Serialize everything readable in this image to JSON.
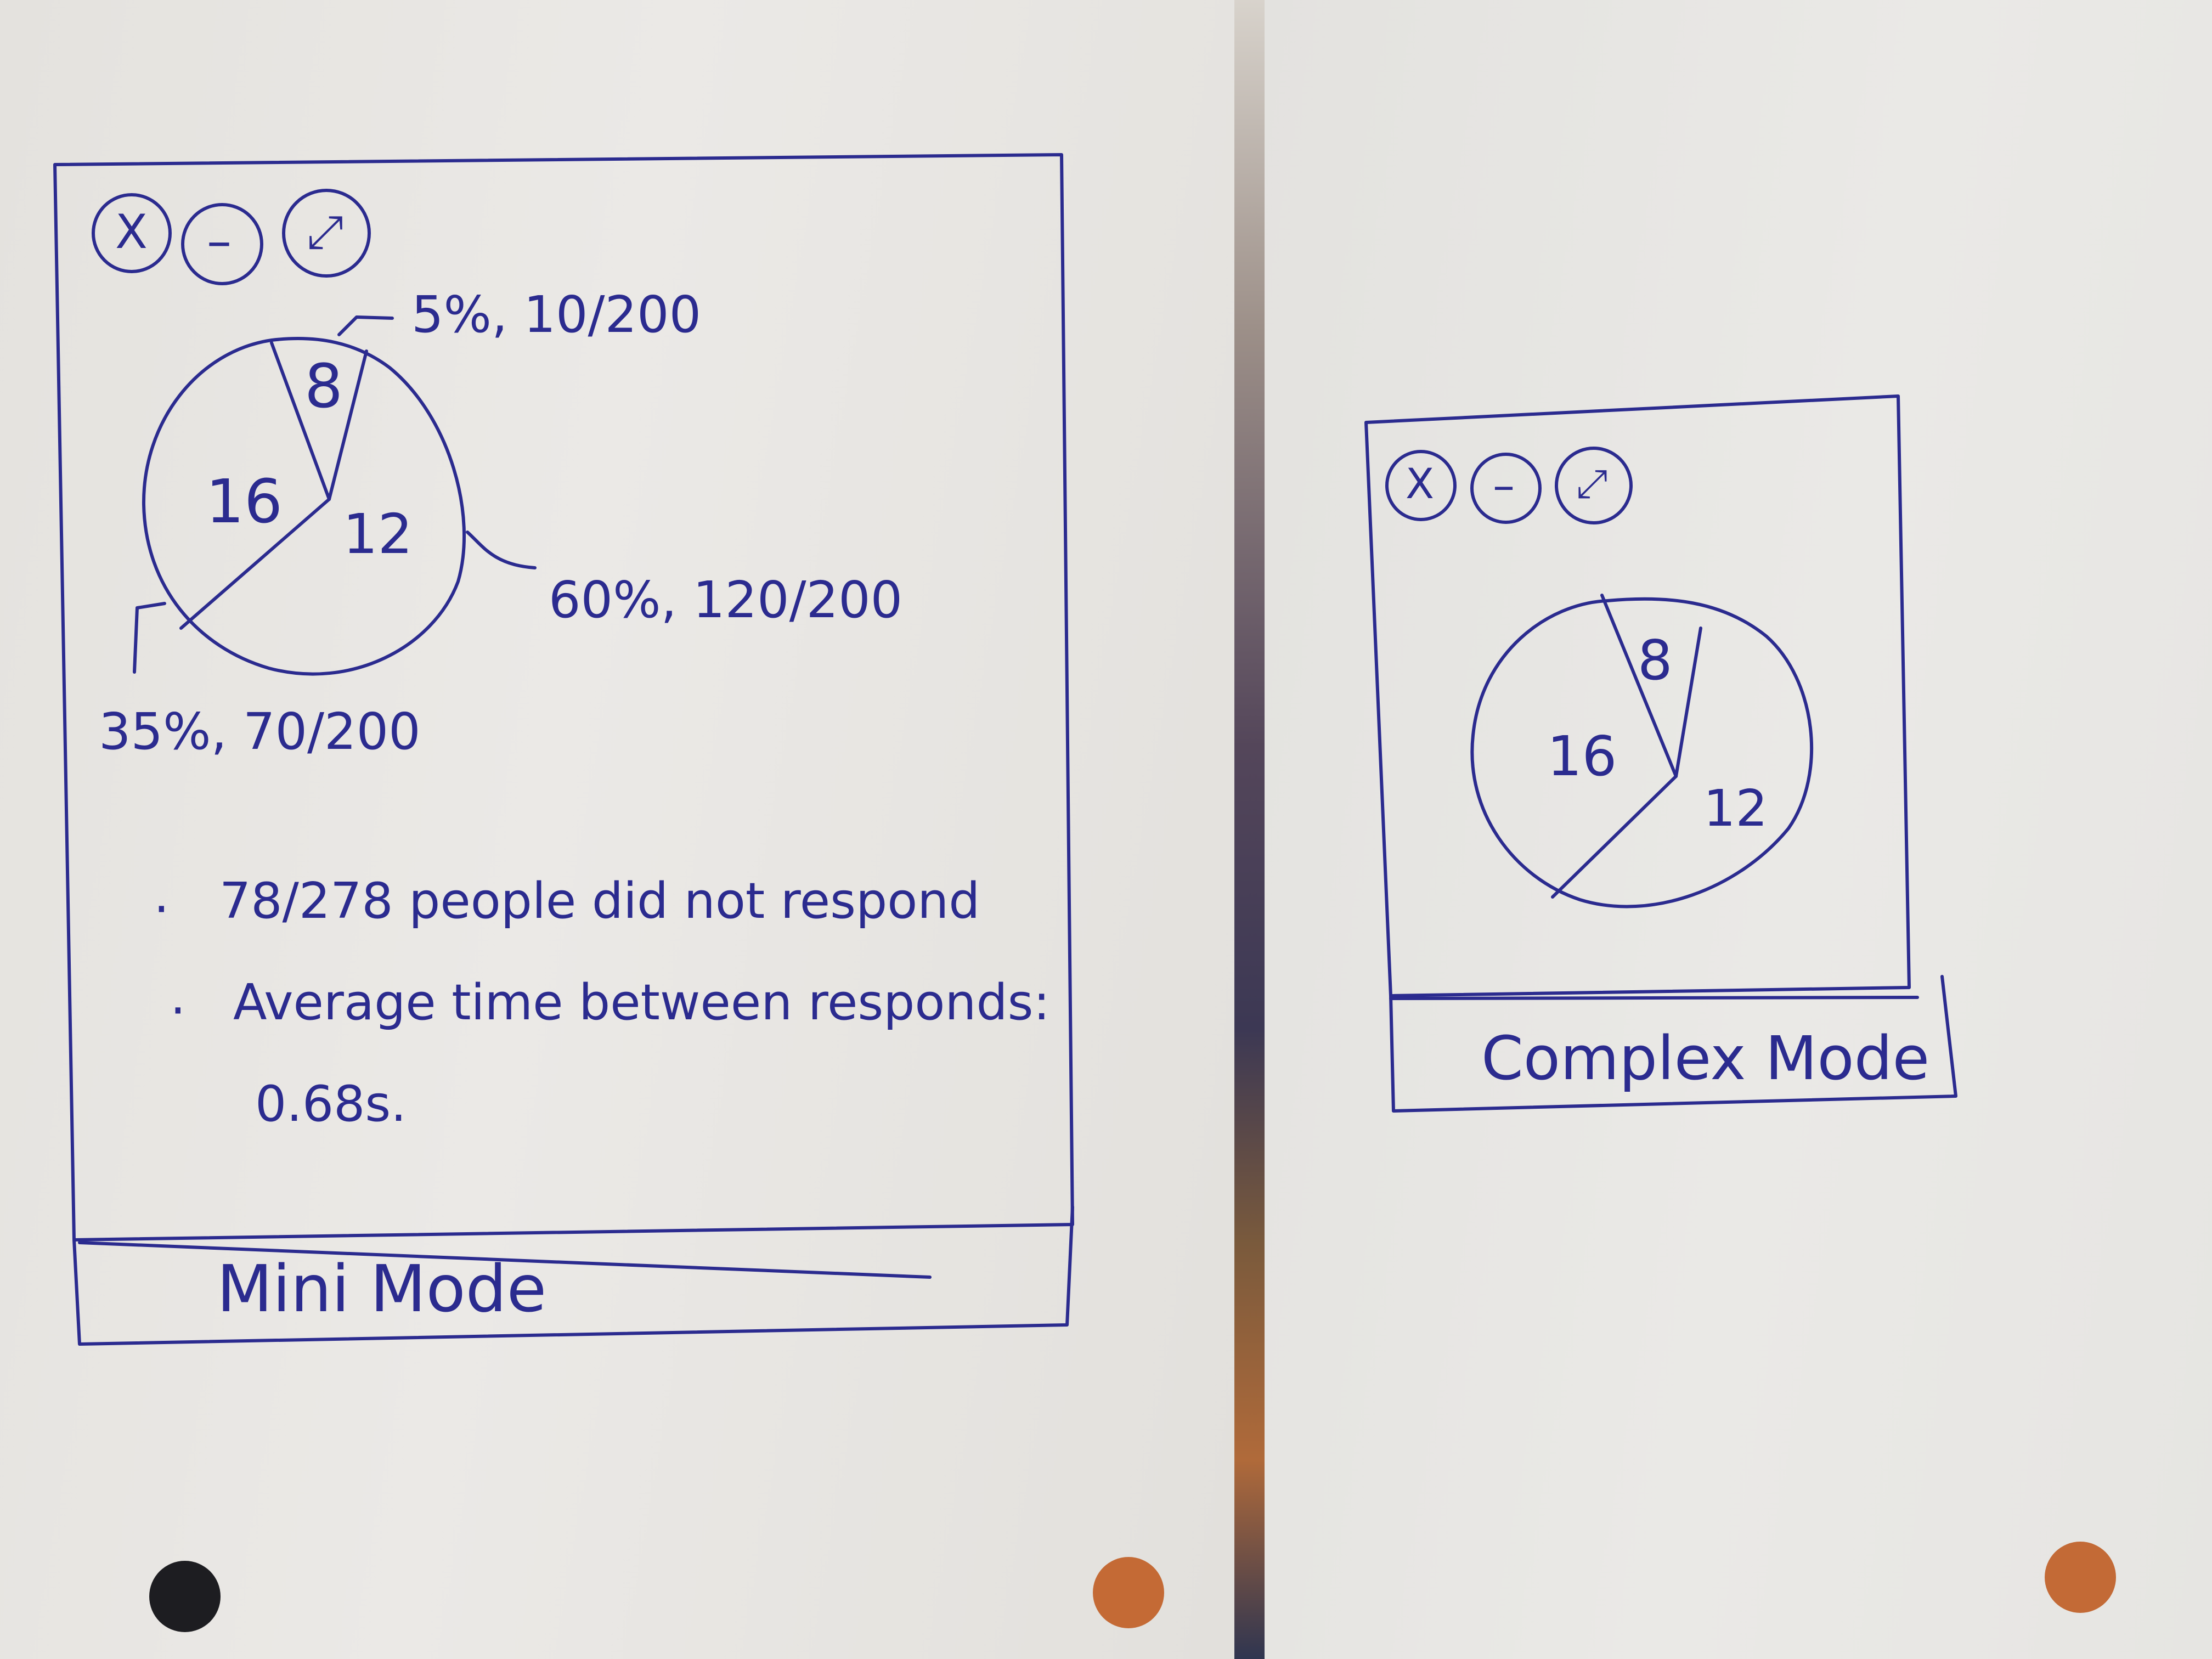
{
  "colors": {
    "ink": "#2b2b8f",
    "paper": "#e9e8e5"
  },
  "mini_window": {
    "window_controls": [
      {
        "icon": "close-icon",
        "glyph": "X"
      },
      {
        "icon": "minimize-icon",
        "glyph": "–"
      },
      {
        "icon": "expand-icon",
        "glyph": "⤢"
      }
    ],
    "pie": {
      "slice_labels": [
        "8",
        "16",
        "12"
      ],
      "annotations": [
        "5%, 10/200",
        "60%, 120/200",
        "35%, 70/200"
      ]
    },
    "bullets": [
      "78/278 people did not respond",
      "Average time between responds:"
    ],
    "bullet_continuation": "0.68s.",
    "mode_label": "Mini Mode"
  },
  "complex_window": {
    "window_controls": [
      {
        "icon": "close-icon",
        "glyph": "X"
      },
      {
        "icon": "minimize-icon",
        "glyph": "–"
      },
      {
        "icon": "expand-icon",
        "glyph": "⤢"
      }
    ],
    "pie": {
      "slice_labels": [
        "8",
        "16",
        "12"
      ]
    },
    "mode_label": "Complex Mode"
  }
}
